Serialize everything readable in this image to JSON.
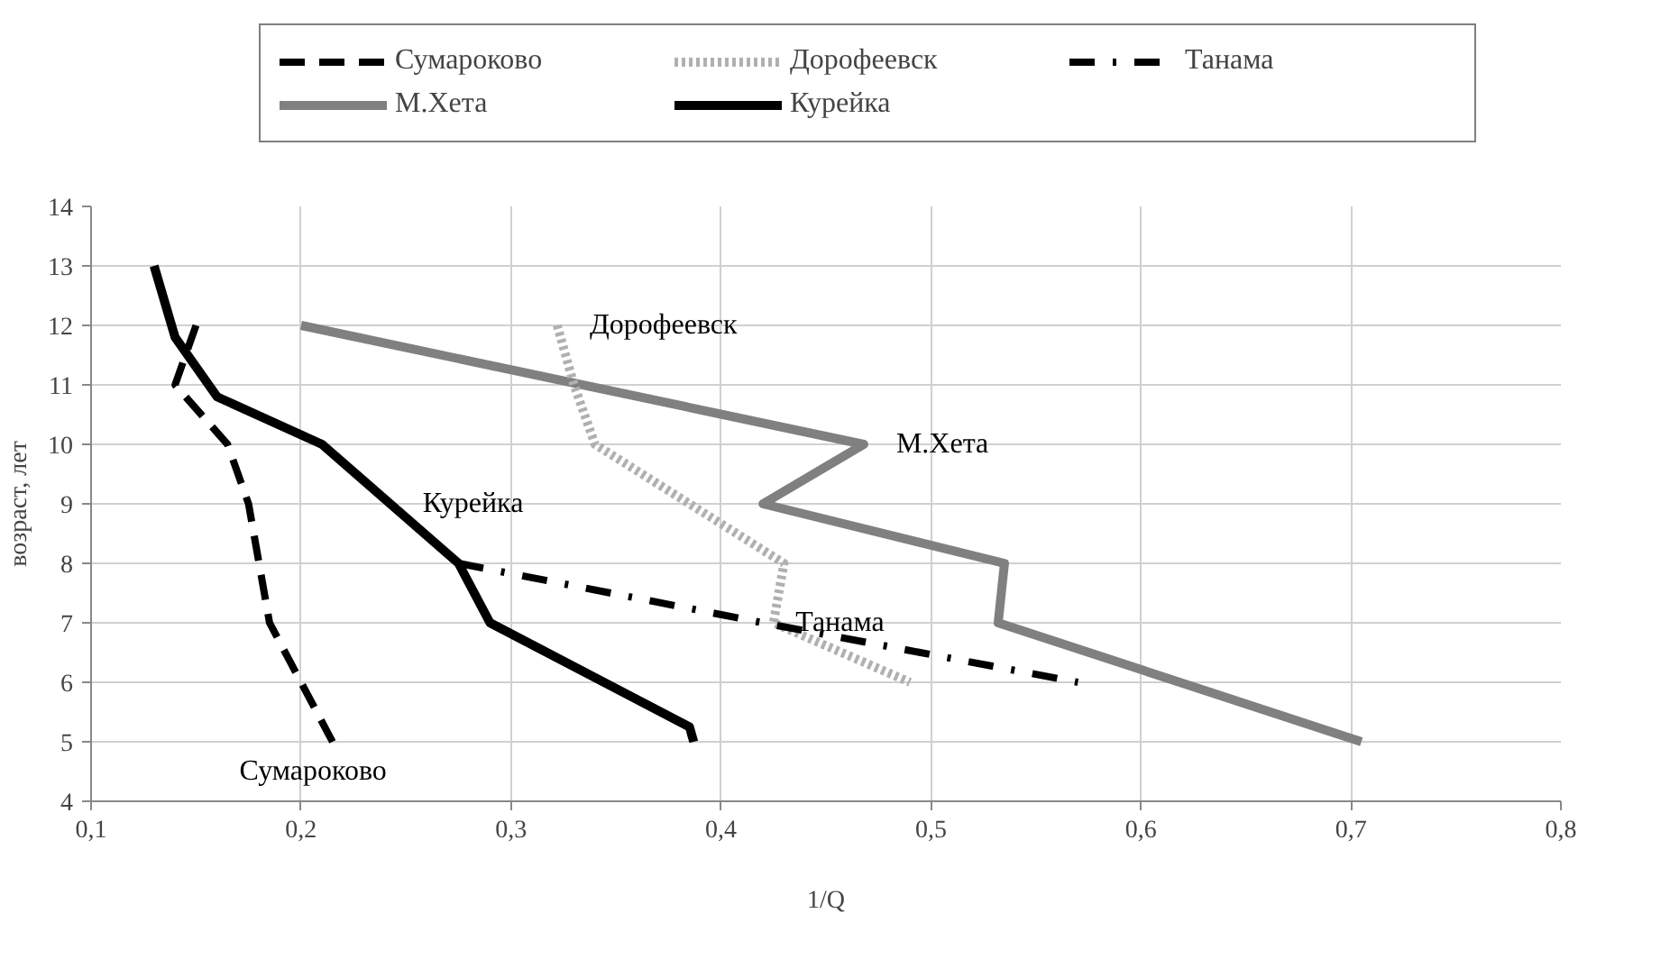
{
  "chart_data": {
    "type": "line",
    "xlabel": "1/Q",
    "ylabel": "возраст, лет",
    "xlim": [
      0.1,
      0.8
    ],
    "ylim": [
      4,
      14
    ],
    "xticks": [
      {
        "value": 0.1,
        "label": "0,1"
      },
      {
        "value": 0.2,
        "label": "0,2"
      },
      {
        "value": 0.3,
        "label": "0,3"
      },
      {
        "value": 0.4,
        "label": "0,4"
      },
      {
        "value": 0.5,
        "label": "0,5"
      },
      {
        "value": 0.6,
        "label": "0,6"
      },
      {
        "value": 0.7,
        "label": "0,7"
      },
      {
        "value": 0.8,
        "label": "0,8"
      }
    ],
    "yticks": [
      4,
      5,
      6,
      7,
      8,
      9,
      10,
      11,
      12,
      13,
      14
    ],
    "grid": true,
    "legend": "top",
    "series": [
      {
        "name": "Сумароково",
        "color": "#000000",
        "line_style": "dashed",
        "x": [
          0.15,
          0.14,
          0.165,
          0.175,
          0.18,
          0.185,
          0.2,
          0.215
        ],
        "values": [
          12,
          11,
          10,
          9,
          8,
          7,
          6,
          5
        ]
      },
      {
        "name": "М.Хета",
        "color": "#808080",
        "line_style": "solid",
        "x": [
          0.2,
          0.468,
          0.42,
          0.535,
          0.532,
          0.705
        ],
        "values": [
          12,
          10,
          9,
          8,
          7,
          5
        ]
      },
      {
        "name": "Дорофеевск",
        "color": "#b0b0b0",
        "line_style": "dotted",
        "x": [
          0.322,
          0.33,
          0.34,
          0.43,
          0.425,
          0.49
        ],
        "values": [
          12,
          11,
          10,
          8,
          7,
          6
        ]
      },
      {
        "name": "Курейка",
        "color": "#000000",
        "line_style": "solid",
        "x": [
          0.13,
          0.14,
          0.16,
          0.21,
          0.275,
          0.29,
          0.385,
          0.387
        ],
        "values": [
          13,
          11.8,
          10.8,
          10,
          8,
          7,
          5.25,
          5
        ]
      },
      {
        "name": "Танама",
        "color": "#000000",
        "line_style": "dashdot",
        "x": [
          0.275,
          0.42,
          0.57
        ],
        "values": [
          8,
          7,
          6
        ]
      }
    ],
    "annotations": [
      {
        "text": "Дорофеевск",
        "x": 0.322,
        "y": 12
      },
      {
        "text": "М.Хета",
        "x": 0.468,
        "y": 10
      },
      {
        "text": "Курейка",
        "x": 0.2425,
        "y": 9
      },
      {
        "text": "Танама",
        "x": 0.42,
        "y": 7
      },
      {
        "text": "Сумароково",
        "x": 0.215,
        "y": 5
      }
    ]
  }
}
